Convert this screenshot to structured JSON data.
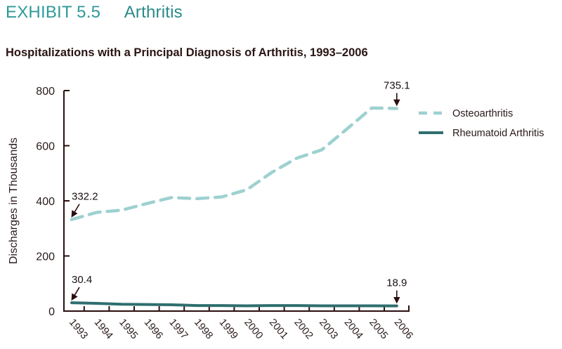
{
  "header": {
    "exhibit_number": "EXHIBIT 5.5",
    "exhibit_topic": "Arthritis",
    "subtitle": "Hospitalizations with a Principal Diagnosis of Arthritis, 1993–2006"
  },
  "colors": {
    "title": "#2e9a98",
    "osteoarthritis": "#9dd1d0",
    "rheumatoid": "#2f6e6e",
    "axis": "#2a0e0e"
  },
  "chart_data": {
    "type": "line",
    "title": "Hospitalizations with a Principal Diagnosis of Arthritis, 1993–2006",
    "xlabel": "",
    "ylabel": "Discharges in Thousands",
    "ylim": [
      0,
      800
    ],
    "yticks": [
      "0",
      "200",
      "400",
      "600",
      "800"
    ],
    "grid": false,
    "legend_position": "right",
    "categories": [
      "1993",
      "1994",
      "1995",
      "1996",
      "1997",
      "1998",
      "1999",
      "2000",
      "2001",
      "2002",
      "2003",
      "2004",
      "2005",
      "2006"
    ],
    "series": [
      {
        "name": "Osteoarthritis",
        "style": "dashed",
        "values": [
          332.2,
          358,
          366,
          390,
          412,
          408,
          414,
          440,
          503,
          555,
          585,
          660,
          737,
          735.1
        ]
      },
      {
        "name": "Rheumatoid Arthritis",
        "style": "solid",
        "values": [
          30.4,
          28,
          25,
          24,
          23,
          20,
          20,
          19,
          20,
          20,
          19,
          19,
          19,
          18.9
        ]
      }
    ],
    "annotations": [
      {
        "series": "Osteoarthritis",
        "x": "1993",
        "label": "332.2"
      },
      {
        "series": "Osteoarthritis",
        "x": "2006",
        "label": "735.1"
      },
      {
        "series": "Rheumatoid Arthritis",
        "x": "1993",
        "label": "30.4"
      },
      {
        "series": "Rheumatoid Arthritis",
        "x": "2006",
        "label": "18.9"
      }
    ]
  }
}
